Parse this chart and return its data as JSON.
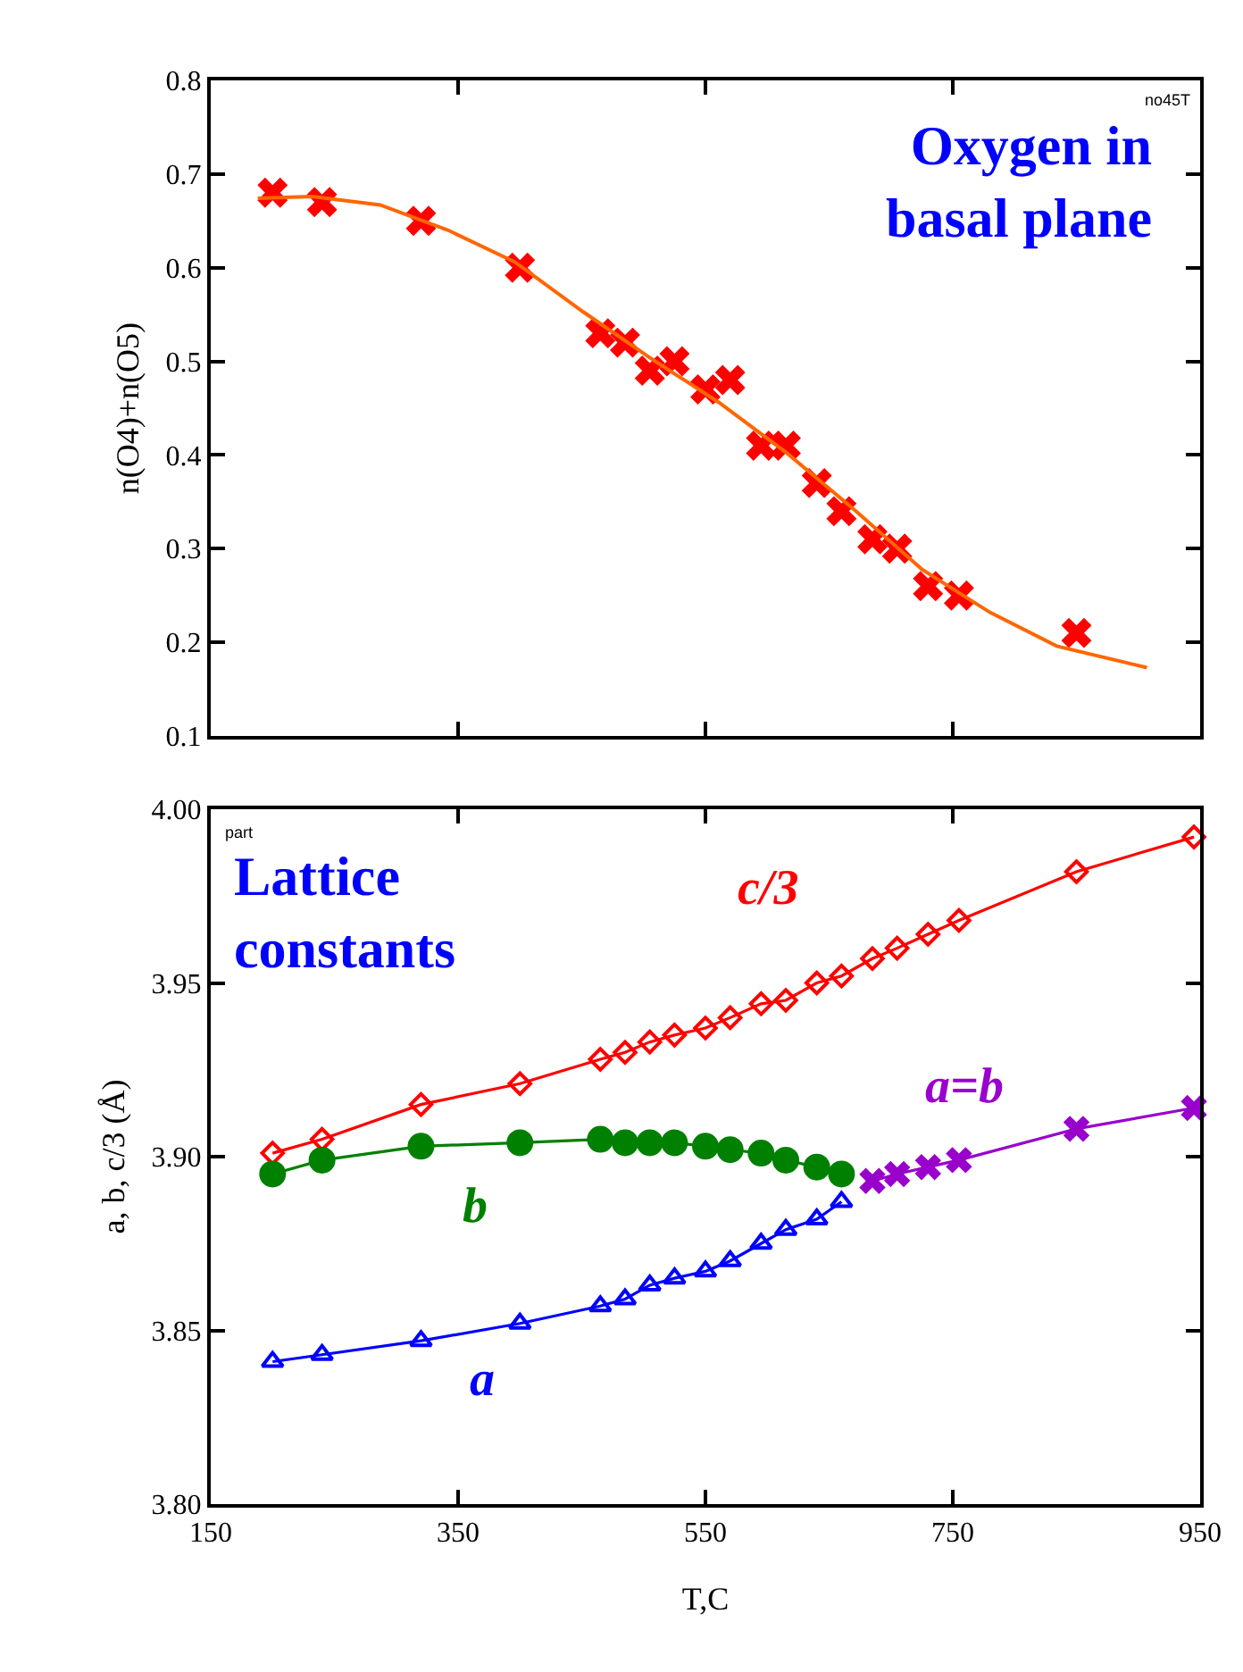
{
  "chart_data": [
    {
      "type": "scatter",
      "ylabel": "n(O4)+n(O5)",
      "annotations": [
        "no45T",
        "Oxygen in\nbasal plane"
      ],
      "xlim": [
        150,
        950
      ],
      "xticks": [
        150,
        350,
        550,
        750,
        950
      ],
      "ylim": [
        0.1,
        0.8
      ],
      "yticks": [
        0.1,
        0.2,
        0.3,
        0.4,
        0.5,
        0.6,
        0.7,
        0.8
      ],
      "tick_labels": "y",
      "legend": false,
      "marker": "cross",
      "series": [
        {
          "color": "#ff0000",
          "x": [
            200,
            240,
            320,
            400,
            465,
            485,
            505,
            525,
            550,
            570,
            595,
            615,
            640,
            660,
            685,
            705,
            730,
            755,
            850
          ],
          "values": [
            0.68,
            0.67,
            0.65,
            0.6,
            0.53,
            0.52,
            0.49,
            0.5,
            0.47,
            0.48,
            0.41,
            0.41,
            0.37,
            0.34,
            0.31,
            0.3,
            0.26,
            0.25,
            0.21
          ]
        },
        {
          "type": "line",
          "marker": "none",
          "color": "#ff6600",
          "x": [
            188,
            232,
            287,
            342,
            396,
            451,
            506,
            561,
            615,
            670,
            725,
            780,
            834,
            907
          ],
          "values": [
            0.674,
            0.676,
            0.667,
            0.64,
            0.606,
            0.553,
            0.503,
            0.456,
            0.403,
            0.342,
            0.278,
            0.232,
            0.196,
            0.173
          ]
        }
      ]
    },
    {
      "type": "line",
      "xlabel": "T,C",
      "ylabel": "a, b, c/3 (Å)",
      "annotations": [
        "part",
        "Lattice\nconstants"
      ],
      "xlim": [
        150,
        950
      ],
      "xticks": [
        150,
        350,
        550,
        750,
        950
      ],
      "ylim": [
        3.8,
        4.0
      ],
      "yticks": [
        {
          "value": 3.8,
          "label": "3.80"
        },
        {
          "value": 3.85,
          "label": "3.85"
        },
        {
          "value": 3.9,
          "label": "3.90"
        },
        {
          "value": 3.95,
          "label": "3.95"
        },
        {
          "value": 4.0,
          "label": "4.00"
        }
      ],
      "legend": false,
      "series": [
        {
          "name": "c/3",
          "color": "#ff0000",
          "marker": "diamond",
          "x": [
            200,
            240,
            320,
            400,
            465,
            485,
            505,
            525,
            550,
            570,
            595,
            615,
            640,
            660,
            685,
            705,
            730,
            755,
            850,
            945
          ],
          "values": [
            3.901,
            3.905,
            3.915,
            3.921,
            3.928,
            3.93,
            3.933,
            3.935,
            3.937,
            3.94,
            3.944,
            3.945,
            3.95,
            3.952,
            3.957,
            3.96,
            3.964,
            3.968,
            3.982,
            3.992
          ]
        },
        {
          "name": "b",
          "color": "#008000",
          "marker": "circle",
          "x": [
            200,
            240,
            320,
            400,
            465,
            485,
            505,
            525,
            550,
            570,
            595,
            615,
            640,
            660
          ],
          "values": [
            3.895,
            3.899,
            3.903,
            3.904,
            3.905,
            3.904,
            3.904,
            3.904,
            3.903,
            3.902,
            3.901,
            3.899,
            3.897,
            3.895
          ]
        },
        {
          "name": "a",
          "color": "#0000ff",
          "marker": "triangle",
          "x": [
            200,
            240,
            320,
            400,
            465,
            485,
            505,
            525,
            550,
            570,
            595,
            615,
            640,
            660
          ],
          "values": [
            3.841,
            3.843,
            3.847,
            3.852,
            3.857,
            3.859,
            3.863,
            3.865,
            3.867,
            3.87,
            3.875,
            3.879,
            3.882,
            3.887
          ]
        },
        {
          "name": "a=b",
          "color": "#9900cc",
          "marker": "cross",
          "x": [
            685,
            705,
            730,
            755,
            850,
            945
          ],
          "values": [
            3.893,
            3.895,
            3.897,
            3.899,
            3.908,
            3.914
          ]
        }
      ]
    }
  ]
}
